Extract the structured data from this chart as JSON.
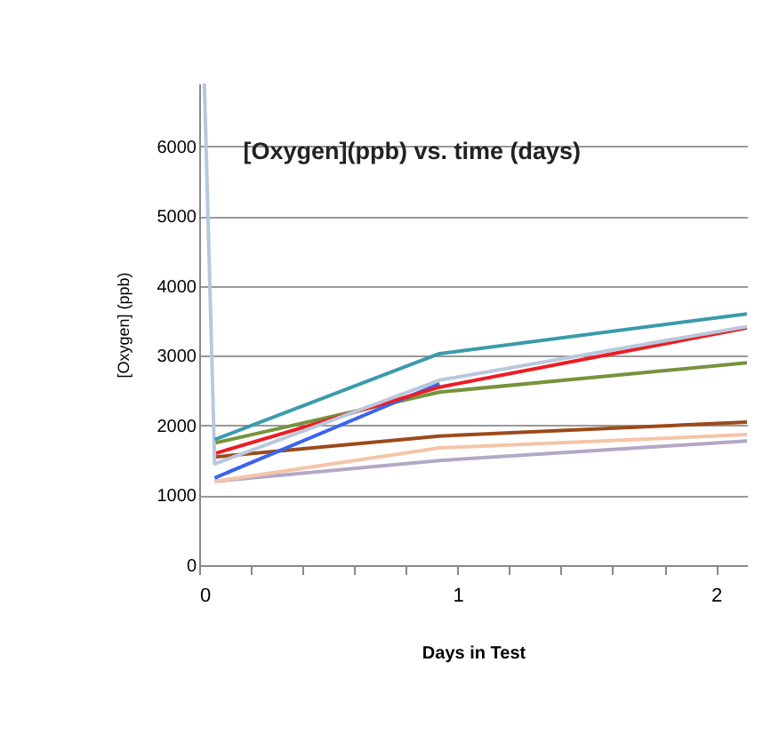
{
  "chart_data": {
    "type": "line",
    "title": "[Oxygen](ppb) vs. time (days)",
    "xlabel": "Days in Test",
    "ylabel": "[Oxygen] (ppb)",
    "xlim": [
      0,
      2.12
    ],
    "xticks": [
      0,
      {
        "value": 0.2,
        "label": null
      },
      {
        "value": 0.4,
        "label": null
      },
      {
        "value": 0.6,
        "label": null
      },
      {
        "value": 0.8,
        "label": null
      },
      1,
      {
        "value": 1.2,
        "label": null
      },
      {
        "value": 1.4,
        "label": null
      },
      {
        "value": 1.6,
        "label": null
      },
      {
        "value": 1.8,
        "label": null
      },
      2
    ],
    "ylim": [
      0,
      6900
    ],
    "yticks": [
      0,
      1000,
      2000,
      3000,
      4000,
      5000,
      6000
    ],
    "grid": "y",
    "x": [
      0.06,
      0.93,
      2.12
    ],
    "series": [
      {
        "color": "#b3a8c8",
        "values": [
          1200,
          1500,
          1780
        ]
      },
      {
        "color": "#f5c4a8",
        "values": [
          1200,
          1680,
          1870
        ]
      },
      {
        "color": "#9c4a1a",
        "values": [
          1550,
          1850,
          2050
        ]
      },
      {
        "color": "#77933c",
        "values": [
          1750,
          2480,
          2900
        ]
      },
      {
        "color": "#3b63f0",
        "values": [
          1250,
          2600,
          null
        ]
      },
      {
        "color": "#ee1c24",
        "values": [
          1600,
          2550,
          3400
        ]
      },
      {
        "color": "#b8c8dc",
        "x": [
          0.02,
          0.06,
          0.93,
          2.12
        ],
        "values": [
          6900,
          1450,
          2650,
          3420
        ]
      },
      {
        "color": "#3a9bab",
        "values": [
          1800,
          3030,
          3600
        ]
      }
    ]
  }
}
